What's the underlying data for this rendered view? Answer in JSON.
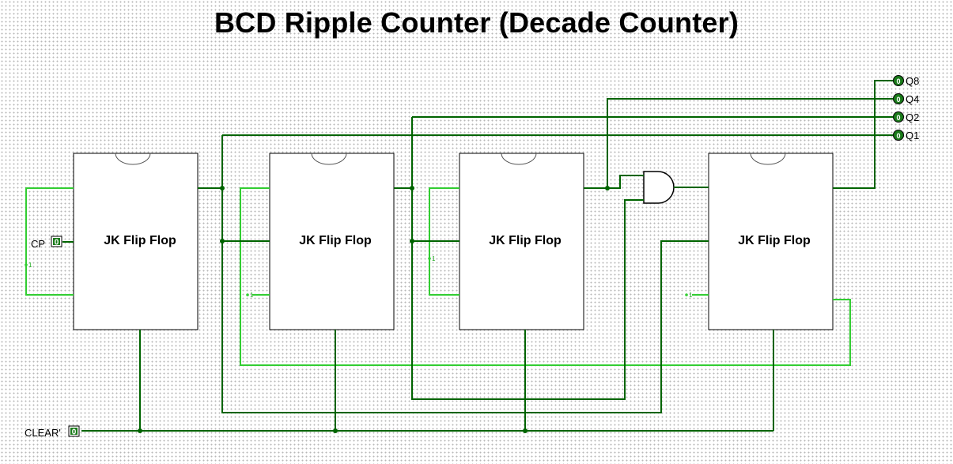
{
  "title": "BCD Ripple Counter (Decade Counter)",
  "flip_flops": [
    {
      "label": "JK Flip Flop"
    },
    {
      "label": "JK Flip Flop"
    },
    {
      "label": "JK Flip Flop"
    },
    {
      "label": "JK Flip Flop"
    }
  ],
  "inputs": {
    "clock": {
      "label": "CP",
      "value": "0"
    },
    "clear": {
      "label": "CLEAR'",
      "value": "0"
    }
  },
  "outputs": [
    {
      "label": "Q8",
      "value": "0"
    },
    {
      "label": "Q4",
      "value": "0"
    },
    {
      "label": "Q2",
      "value": "0"
    },
    {
      "label": "Q1",
      "value": "0"
    }
  ],
  "constant_label": "1",
  "colors": {
    "wire_low": "#006400",
    "wire_high": "#32cd32",
    "component": "#000000"
  }
}
